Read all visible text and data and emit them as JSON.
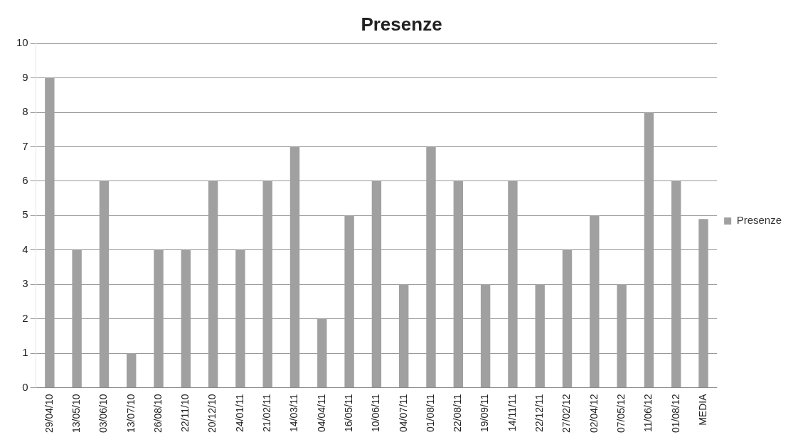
{
  "chart_data": {
    "type": "bar",
    "title": "Presenze",
    "categories": [
      "29/04/10",
      "13/05/10",
      "03/06/10",
      "13/07/10",
      "26/08/10",
      "22/11/10",
      "20/12/10",
      "24/01/11",
      "21/02/11",
      "14/03/11",
      "04/04/11",
      "16/05/11",
      "10/06/11",
      "04/07/11",
      "01/08/11",
      "22/08/11",
      "19/09/11",
      "14/11/11",
      "22/12/11",
      "27/02/12",
      "02/04/12",
      "07/05/12",
      "11/06/12",
      "01/08/12",
      "MEDIA"
    ],
    "series": [
      {
        "name": "Presenze",
        "color": "#a0a0a0",
        "values": [
          9,
          4,
          6,
          1,
          4,
          4,
          6,
          4,
          6,
          7,
          2,
          5,
          6,
          3,
          7,
          6,
          3,
          6,
          3,
          4,
          5,
          3,
          8,
          6,
          4.9
        ]
      }
    ],
    "ylim": [
      0,
      10
    ],
    "yticks": [
      0,
      1,
      2,
      3,
      4,
      5,
      6,
      7,
      8,
      9,
      10
    ],
    "grid": "y",
    "legend": "right"
  }
}
